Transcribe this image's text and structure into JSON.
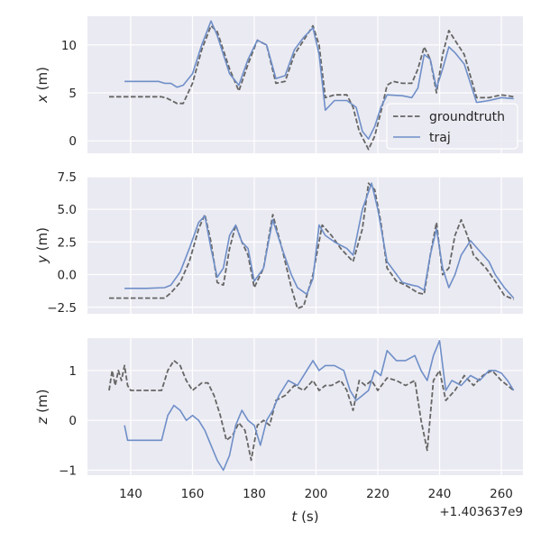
{
  "colors": {
    "panel_bg": "#EAEAF2",
    "grid": "#FFFFFF",
    "groundtruth": "#666666",
    "traj": "#6F8FC8",
    "text": "#262626"
  },
  "legend": {
    "placement": "lower-right of top panel",
    "entries": [
      {
        "label": "groundtruth",
        "style": "dashed"
      },
      {
        "label": "traj",
        "style": "solid"
      }
    ]
  },
  "chart_data": {
    "type": "line",
    "x_label_var": "t",
    "x_label_unit": " (s)",
    "x_offset_label": "+1.403637e9",
    "x_ticks": [
      140,
      160,
      180,
      200,
      220,
      240,
      260
    ],
    "xlim": [
      126,
      267
    ],
    "grid": true,
    "panels": [
      {
        "var": "x",
        "unit": " (m)",
        "ylim": [
          -1.3,
          13.0
        ],
        "y_ticks": [
          {
            "value": 0,
            "label": "0"
          },
          {
            "value": 5,
            "label": "5"
          },
          {
            "value": 10,
            "label": "10"
          }
        ],
        "series": [
          {
            "name": "groundtruth",
            "style": "dashed",
            "x": [
              133,
              140,
              145,
              150,
              152,
              155,
              157,
              160,
              163,
              166,
              168,
              172,
              175,
              178,
              181,
              184,
              187,
              190,
              193,
              196,
              199,
              201,
              203,
              206,
              210,
              212,
              214,
              217,
              219,
              221,
              223,
              225,
              228,
              231,
              233,
              235,
              237,
              239,
              241,
              243,
              245,
              248,
              252,
              256,
              260,
              264
            ],
            "y": [
              4.6,
              4.6,
              4.6,
              4.6,
              4.4,
              3.9,
              3.9,
              6.0,
              9.5,
              12.0,
              11.4,
              7.5,
              5.2,
              8.0,
              10.5,
              10.0,
              6.0,
              6.2,
              9.0,
              10.5,
              12.0,
              10.0,
              4.5,
              4.8,
              4.8,
              3.5,
              1.0,
              -0.9,
              0.5,
              3.0,
              5.8,
              6.2,
              6.0,
              6.0,
              7.5,
              9.8,
              8.5,
              5.0,
              9.0,
              11.5,
              10.5,
              9.0,
              4.5,
              4.5,
              4.8,
              4.6
            ]
          },
          {
            "name": "traj",
            "style": "solid",
            "x": [
              138,
              140,
              145,
              149,
              151,
              153,
              155,
              157,
              160,
              163,
              166,
              168,
              172,
              175,
              178,
              181,
              184,
              187,
              190,
              193,
              196,
              199,
              201,
              203,
              206,
              210,
              213,
              215,
              217,
              219,
              221,
              223,
              228,
              231,
              233,
              235,
              237,
              239,
              241,
              243,
              245,
              248,
              252,
              256,
              260,
              264
            ],
            "y": [
              6.2,
              6.2,
              6.2,
              6.2,
              6.0,
              6.0,
              5.6,
              5.8,
              7.0,
              10.0,
              12.5,
              11.0,
              7.0,
              5.8,
              8.5,
              10.5,
              10.0,
              6.5,
              6.8,
              9.5,
              10.8,
              11.8,
              9.0,
              3.2,
              4.2,
              4.2,
              3.5,
              1.0,
              0.2,
              1.5,
              3.5,
              4.8,
              4.7,
              4.5,
              5.5,
              9.0,
              8.5,
              5.5,
              7.5,
              9.8,
              9.2,
              8.0,
              4.0,
              4.2,
              4.5,
              4.4
            ]
          }
        ]
      },
      {
        "var": "y",
        "unit": " (m)",
        "ylim": [
          -3.0,
          7.5
        ],
        "y_ticks": [
          {
            "value": -2.5,
            "label": "−2.5"
          },
          {
            "value": 0,
            "label": "0.0"
          },
          {
            "value": 2.5,
            "label": "2.5"
          },
          {
            "value": 5,
            "label": "5.0"
          },
          {
            "value": 7.5,
            "label": "7.5"
          }
        ],
        "series": [
          {
            "name": "groundtruth",
            "style": "dashed",
            "x": [
              133,
              140,
              145,
              151,
              153,
              156,
              159,
              162,
              164,
              166,
              168,
              170,
              172,
              174,
              176,
              178,
              180,
              183,
              186,
              189,
              192,
              194,
              196,
              199,
              202,
              205,
              208,
              210,
              212,
              215,
              217,
              219,
              221,
              223,
              226,
              229,
              231,
              233,
              235,
              237,
              239,
              241,
              243,
              245,
              247,
              249,
              251,
              253,
              255,
              258,
              261,
              264
            ],
            "y": [
              -1.8,
              -1.8,
              -1.8,
              -1.8,
              -1.4,
              -0.6,
              1.0,
              3.5,
              4.6,
              2.5,
              -0.6,
              -0.8,
              2.0,
              3.8,
              2.5,
              1.5,
              -1.0,
              0.5,
              4.6,
              2.0,
              -1.0,
              -2.6,
              -2.4,
              0,
              3.8,
              3.0,
              2.0,
              1.5,
              1.0,
              3.5,
              7.0,
              6.5,
              4.0,
              0.5,
              -0.5,
              -0.8,
              -1.1,
              -1.4,
              -1.5,
              1.5,
              4.0,
              0,
              0.5,
              3.0,
              4.2,
              3.0,
              1.5,
              1.0,
              0.5,
              -0.5,
              -1.6,
              -1.9
            ]
          },
          {
            "name": "traj",
            "style": "solid",
            "x": [
              138,
              145,
              151,
              153,
              156,
              159,
              162,
              164,
              166,
              168,
              170,
              172,
              174,
              176,
              178,
              180,
              183,
              186,
              189,
              192,
              194,
              197,
              199,
              201,
              203,
              206,
              210,
              212,
              215,
              218,
              220,
              223,
              228,
              231,
              233,
              235,
              237,
              239,
              241,
              243,
              245,
              247,
              250,
              253,
              256,
              258,
              261,
              264
            ],
            "y": [
              -1.05,
              -1.05,
              -1.0,
              -0.8,
              0.2,
              2.0,
              4.0,
              4.5,
              2.0,
              -0.2,
              0.5,
              3.0,
              3.8,
              2.5,
              2.0,
              -0.5,
              0.5,
              4.2,
              2.0,
              0,
              -1.0,
              -1.5,
              -0.3,
              3.8,
              3.0,
              2.5,
              2.0,
              1.5,
              5.0,
              7.0,
              5.0,
              1.0,
              -0.6,
              -0.8,
              -0.9,
              -1.2,
              1.5,
              3.5,
              0.5,
              -1.0,
              0,
              1.5,
              2.6,
              1.8,
              1.0,
              0,
              -1.0,
              -1.8
            ]
          }
        ]
      },
      {
        "var": "z",
        "unit": " (m)",
        "ylim": [
          -1.1,
          1.65
        ],
        "y_ticks": [
          {
            "value": -1,
            "label": "−1"
          },
          {
            "value": 0,
            "label": "0"
          },
          {
            "value": 1,
            "label": "1"
          }
        ],
        "series": [
          {
            "name": "groundtruth",
            "style": "dashed",
            "x": [
              133,
              134,
              135,
              136,
              137,
              138,
              139,
              140,
              145,
              150,
              152,
              154,
              156,
              158,
              160,
              163,
              165,
              167,
              169,
              171,
              173,
              175,
              177,
              179,
              181,
              183,
              185,
              187,
              190,
              193,
              196,
              199,
              201,
              203,
              205,
              208,
              210,
              212,
              214,
              216,
              218,
              220,
              223,
              226,
              229,
              232,
              234,
              236,
              238,
              240,
              242,
              245,
              248,
              251,
              254,
              257,
              260,
              264
            ],
            "y": [
              0.6,
              1.0,
              0.7,
              1.0,
              0.8,
              1.1,
              0.7,
              0.6,
              0.6,
              0.6,
              1.0,
              1.2,
              1.1,
              0.8,
              0.6,
              0.75,
              0.75,
              0.5,
              0.1,
              -0.4,
              -0.3,
              -0.05,
              -0.2,
              -0.8,
              -0.1,
              0.0,
              -0.1,
              0.4,
              0.5,
              0.7,
              0.6,
              0.8,
              0.6,
              0.7,
              0.7,
              0.8,
              0.6,
              0.2,
              0.8,
              0.7,
              0.8,
              0.6,
              0.85,
              0.8,
              0.7,
              0.8,
              0.0,
              -0.6,
              0.8,
              1.0,
              0.4,
              0.6,
              0.9,
              0.7,
              0.9,
              1.0,
              0.8,
              0.6
            ]
          },
          {
            "name": "traj",
            "style": "solid",
            "x": [
              138,
              139,
              140,
              145,
              150,
              152,
              154,
              156,
              158,
              160,
              162,
              164,
              166,
              168,
              170,
              172,
              174,
              176,
              178,
              180,
              182,
              184,
              186,
              188,
              191,
              194,
              197,
              199,
              201,
              203,
              206,
              209,
              211,
              213,
              215,
              217,
              219,
              221,
              223,
              226,
              229,
              232,
              234,
              236,
              238,
              240,
              242,
              244,
              247,
              250,
              253,
              256,
              258,
              260,
              262,
              264
            ],
            "y": [
              -0.1,
              -0.4,
              -0.4,
              -0.4,
              -0.4,
              0.1,
              0.3,
              0.2,
              0.0,
              0.1,
              0.0,
              -0.2,
              -0.5,
              -0.8,
              -1.0,
              -0.7,
              -0.1,
              0.2,
              0.0,
              -0.1,
              -0.5,
              0.0,
              0.2,
              0.5,
              0.8,
              0.7,
              1.0,
              1.2,
              1.0,
              1.1,
              1.1,
              1.0,
              0.6,
              0.4,
              0.5,
              0.6,
              1.0,
              0.9,
              1.4,
              1.2,
              1.2,
              1.3,
              1.0,
              0.8,
              1.3,
              1.6,
              0.6,
              0.8,
              0.7,
              0.9,
              0.8,
              1.0,
              1.0,
              0.95,
              0.8,
              0.6
            ]
          }
        ]
      }
    ]
  }
}
